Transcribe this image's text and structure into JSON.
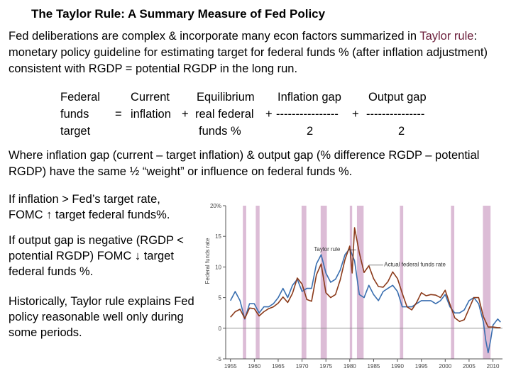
{
  "title": "The Taylor Rule: A Summary Measure of Fed Policy",
  "intro": {
    "before": "Fed deliberations are complex & incorporate many econ factors summarized in ",
    "highlight": "Taylor rule",
    "after": ": monetary policy guideline for estimating target for federal funds % (after inflation adjustment) consistent with RGDP = potential RGDP in the long run."
  },
  "formula": {
    "lhs": [
      "Federal",
      "funds",
      "target"
    ],
    "equals": "=",
    "plus1": "+",
    "plus2": "+",
    "plus3": "+",
    "term1": [
      "Current",
      "inflation"
    ],
    "term2": [
      "Equilibrium",
      "real federal",
      "funds %"
    ],
    "term3": [
      "Inflation gap",
      "----------------",
      "2"
    ],
    "term4": [
      "Output gap",
      "---------------",
      "2"
    ]
  },
  "explanation": "Where inflation gap (current – target inflation) & output gap (% difference RGDP – potential RGDP) have the same ½ “weight” or influence on federal funds %.",
  "notes": [
    "If inflation > Fed’s target rate, FOMC ↑ target federal funds%.",
    "If output gap is negative (RGDP < potential RGDP) FOMC ↓ target federal funds %.",
    "Historically, Taylor rule explains Fed policy reasonable well only during some periods."
  ],
  "chart_data": {
    "type": "line",
    "ylabel": "Federal funds rate",
    "ylim": [
      -5,
      20
    ],
    "yticks": [
      "20%",
      "15",
      "10",
      "5",
      "0",
      "-5"
    ],
    "ytick_values": [
      20,
      15,
      10,
      5,
      0,
      -5
    ],
    "xlim": [
      1954,
      2012
    ],
    "xticks": [
      "1955",
      "1960",
      "1965",
      "1970",
      "1975",
      "1980",
      "1985",
      "1990",
      "1995",
      "2000",
      "2005",
      "2010"
    ],
    "xtick_values": [
      1955,
      1960,
      1965,
      1970,
      1975,
      1980,
      1985,
      1990,
      1995,
      2000,
      2005,
      2010
    ],
    "recessions": [
      [
        1957.6,
        1958.3
      ],
      [
        1960.3,
        1961.1
      ],
      [
        1969.9,
        1970.9
      ],
      [
        1973.9,
        1975.2
      ],
      [
        1980.0,
        1980.5
      ],
      [
        1981.5,
        1982.9
      ],
      [
        1990.5,
        1991.2
      ],
      [
        2001.2,
        2001.9
      ],
      [
        2007.9,
        2009.5
      ]
    ],
    "annotations": [
      "Taylor rule",
      "Actual federal funds rate"
    ],
    "colors": {
      "taylor": "#3a6fb0",
      "actual": "#8b3a1a",
      "recession": "#dcbcd6",
      "axis": "#555555",
      "hline": "#888888"
    },
    "series": [
      {
        "name": "Taylor rule",
        "x": [
          1955,
          1956,
          1957,
          1958,
          1959,
          1960,
          1961,
          1962,
          1963,
          1964,
          1965,
          1966,
          1967,
          1968,
          1969,
          1970,
          1971,
          1972,
          1973,
          1974,
          1975,
          1976,
          1977,
          1978,
          1979,
          1980,
          1981,
          1982,
          1983,
          1984,
          1985,
          1986,
          1987,
          1988,
          1989,
          1990,
          1991,
          1992,
          1993,
          1994,
          1995,
          1996,
          1997,
          1998,
          1999,
          2000,
          2001,
          2002,
          2003,
          2004,
          2005,
          2006,
          2007,
          2008,
          2008.5,
          2009,
          2009.5,
          2010,
          2010.5,
          2011,
          2011.6
        ],
        "y": [
          4.5,
          6.0,
          4.5,
          1.5,
          4.0,
          4.0,
          2.5,
          3.5,
          3.5,
          4.0,
          5.0,
          6.5,
          5.0,
          7.0,
          8.0,
          6.0,
          6.5,
          6.5,
          10.5,
          12.0,
          9.0,
          7.5,
          8.0,
          9.5,
          12.0,
          13.0,
          11.0,
          5.5,
          5.0,
          7.0,
          5.5,
          4.5,
          6.0,
          6.5,
          7.0,
          6.0,
          3.5,
          3.5,
          3.5,
          4.0,
          4.5,
          4.5,
          4.5,
          4.0,
          4.5,
          5.5,
          3.5,
          2.5,
          2.5,
          3.0,
          4.5,
          5.0,
          4.0,
          1.0,
          -2.0,
          -4.0,
          -2.0,
          0.5,
          1.0,
          1.5,
          1.0
        ]
      },
      {
        "name": "Actual federal funds rate",
        "x": [
          1955,
          1956,
          1957,
          1958,
          1959,
          1960,
          1961,
          1962,
          1963,
          1964,
          1965,
          1966,
          1967,
          1968,
          1969,
          1970,
          1971,
          1972,
          1973,
          1974,
          1975,
          1976,
          1977,
          1978,
          1979,
          1980,
          1980.5,
          1981,
          1982,
          1983,
          1984,
          1985,
          1986,
          1987,
          1988,
          1989,
          1990,
          1991,
          1992,
          1993,
          1994,
          1995,
          1996,
          1997,
          1998,
          1999,
          2000,
          2001,
          2002,
          2003,
          2004,
          2005,
          2006,
          2007,
          2008,
          2009,
          2010,
          2011,
          2011.6
        ],
        "y": [
          1.8,
          2.7,
          3.1,
          1.6,
          3.3,
          3.2,
          2.0,
          2.7,
          3.2,
          3.5,
          4.1,
          5.1,
          4.2,
          5.7,
          8.2,
          7.2,
          4.7,
          4.4,
          8.7,
          10.5,
          5.8,
          5.0,
          5.5,
          7.9,
          11.2,
          13.4,
          9.0,
          16.4,
          12.3,
          9.1,
          10.2,
          8.1,
          6.8,
          6.7,
          7.6,
          9.2,
          8.1,
          5.7,
          3.5,
          3.0,
          4.2,
          5.8,
          5.3,
          5.5,
          5.4,
          5.0,
          6.2,
          3.9,
          1.7,
          1.1,
          1.4,
          3.2,
          5.0,
          5.0,
          1.9,
          0.2,
          0.2,
          0.1,
          0.1
        ]
      }
    ]
  }
}
